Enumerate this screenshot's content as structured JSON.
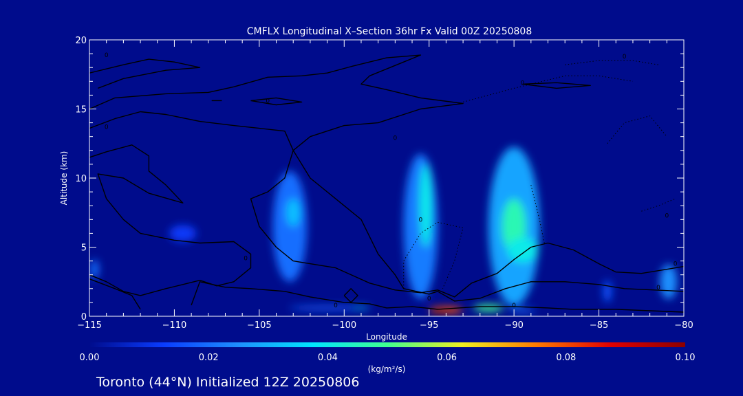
{
  "chart_data": {
    "type": "heatmap",
    "title": "CMFLX Longitudinal X–Section 36hr  Fx Valid 00Z 20250808",
    "subtitle": "Toronto (44°N) Initialized 12Z 20250806",
    "xlabel": "Longitude",
    "ylabel": "Altitude (km)",
    "xlim": [
      -115,
      -80
    ],
    "ylim": [
      0,
      20
    ],
    "x_ticks": [
      {
        "value": -115,
        "label": "−115"
      },
      {
        "value": -110,
        "label": "−110"
      },
      {
        "value": -105,
        "label": "−105"
      },
      {
        "value": -100,
        "label": "−100"
      },
      {
        "value": -95,
        "label": "−95"
      },
      {
        "value": -90,
        "label": "−90"
      },
      {
        "value": -85,
        "label": "−85"
      },
      {
        "value": -80,
        "label": "−80"
      }
    ],
    "y_ticks": [
      {
        "value": 0,
        "label": "0"
      },
      {
        "value": 5,
        "label": "5"
      },
      {
        "value": 10,
        "label": "10"
      },
      {
        "value": 15,
        "label": "15"
      },
      {
        "value": 20,
        "label": "20"
      }
    ],
    "colorbar": {
      "min": 0.0,
      "max": 0.1,
      "ticks": [
        {
          "value": 0.0,
          "label": "0.00"
        },
        {
          "value": 0.02,
          "label": "0.02"
        },
        {
          "value": 0.04,
          "label": "0.04"
        },
        {
          "value": 0.06,
          "label": "0.06"
        },
        {
          "value": 0.08,
          "label": "0.08"
        },
        {
          "value": 0.1,
          "label": "0.10"
        }
      ],
      "units": "(kg/m²/s)",
      "colors": [
        "#000c8c",
        "#0a3cff",
        "#1e90ff",
        "#00e5ff",
        "#40ff90",
        "#f0f020",
        "#ff7a00",
        "#e00000",
        "#8a0000"
      ]
    },
    "flux_cells": [
      {
        "lon": -114.7,
        "alt": 3.4,
        "dlon": 0.5,
        "dalt": 1.4,
        "value": 0.02
      },
      {
        "lon": -109.5,
        "alt": 6.0,
        "dlon": 1.6,
        "dalt": 1.2,
        "value": 0.012
      },
      {
        "lon": -103.2,
        "alt": 6.5,
        "dlon": 2.0,
        "dalt": 8.0,
        "value": 0.02
      },
      {
        "lon": -103.0,
        "alt": 7.5,
        "dlon": 0.8,
        "dalt": 2.0,
        "value": 0.032
      },
      {
        "lon": -95.5,
        "alt": 6.5,
        "dlon": 2.0,
        "dalt": 10.5,
        "value": 0.022
      },
      {
        "lon": -95.2,
        "alt": 8.0,
        "dlon": 0.7,
        "dalt": 6.0,
        "value": 0.04
      },
      {
        "lon": -90.0,
        "alt": 6.5,
        "dlon": 3.0,
        "dalt": 11.5,
        "value": 0.028
      },
      {
        "lon": -90.0,
        "alt": 6.5,
        "dlon": 1.4,
        "dalt": 4.0,
        "value": 0.046
      },
      {
        "lon": -89.5,
        "alt": 4.8,
        "dlon": 1.8,
        "dalt": 1.8,
        "value": 0.04
      },
      {
        "lon": -84.5,
        "alt": 1.8,
        "dlon": 0.5,
        "dalt": 1.6,
        "value": 0.016
      },
      {
        "lon": -80.9,
        "alt": 2.5,
        "dlon": 1.0,
        "dalt": 2.5,
        "value": 0.025
      },
      {
        "lon": -101.0,
        "alt": 0.6,
        "dlon": 4.5,
        "dalt": 0.3,
        "value": 0.018
      },
      {
        "lon": -99.0,
        "alt": 0.6,
        "dlon": 1.0,
        "dalt": 0.2,
        "value": 0.035
      },
      {
        "lon": -94.0,
        "alt": 0.45,
        "dlon": 2.0,
        "dalt": 0.5,
        "value": 0.08
      },
      {
        "lon": -94.4,
        "alt": 0.3,
        "dlon": 0.8,
        "dalt": 0.3,
        "value": 0.1
      },
      {
        "lon": -91.5,
        "alt": 0.6,
        "dlon": 1.8,
        "dalt": 0.5,
        "value": 0.05
      },
      {
        "lon": -89.5,
        "alt": 0.4,
        "dlon": 1.5,
        "dalt": 0.3,
        "value": 0.02
      }
    ],
    "contours": [
      {
        "style": "solid",
        "points": [
          [
            -115,
            17.6
          ],
          [
            -113,
            18.2
          ],
          [
            -111.5,
            18.6
          ],
          [
            -110,
            18.4
          ],
          [
            -108.5,
            18.0
          ],
          [
            -110.5,
            17.8
          ],
          [
            -113,
            17.2
          ],
          [
            -114.5,
            16.5
          ]
        ]
      },
      {
        "style": "solid",
        "points": [
          [
            -115,
            15.0
          ],
          [
            -113.5,
            15.8
          ],
          [
            -110.5,
            16.1
          ],
          [
            -108,
            16.2
          ],
          [
            -106.5,
            16.6
          ],
          [
            -104.5,
            17.3
          ],
          [
            -102.5,
            17.4
          ],
          [
            -101,
            17.6
          ],
          [
            -99.5,
            18.1
          ],
          [
            -97.5,
            18.7
          ],
          [
            -95.5,
            18.9
          ],
          [
            -96.5,
            18.4
          ],
          [
            -98.5,
            17.4
          ],
          [
            -99,
            16.8
          ],
          [
            -97.5,
            16.4
          ],
          [
            -95.5,
            15.8
          ],
          [
            -93,
            15.4
          ],
          [
            -95.5,
            15.0
          ],
          [
            -98,
            14.0
          ],
          [
            -100,
            13.8
          ],
          [
            -102,
            13.0
          ],
          [
            -103,
            12.0
          ],
          [
            -103.5,
            10.0
          ],
          [
            -104.5,
            9.0
          ],
          [
            -105.5,
            8.5
          ],
          [
            -105,
            6.5
          ],
          [
            -104,
            5.0
          ],
          [
            -103,
            4.0
          ],
          [
            -100.5,
            3.5
          ],
          [
            -98.5,
            2.4
          ],
          [
            -97,
            1.9
          ],
          [
            -95.5,
            1.7
          ],
          [
            -94.5,
            1.9
          ],
          [
            -93.5,
            1.4
          ],
          [
            -92.5,
            2.4
          ],
          [
            -91,
            3.1
          ],
          [
            -90,
            4.1
          ],
          [
            -89,
            5.0
          ],
          [
            -88,
            5.3
          ],
          [
            -86.5,
            4.8
          ],
          [
            -85,
            3.8
          ],
          [
            -84,
            3.2
          ],
          [
            -82.5,
            3.1
          ],
          [
            -81,
            3.4
          ],
          [
            -80,
            3.6
          ]
        ]
      },
      {
        "style": "solid",
        "points": [
          [
            -115,
            13.6
          ],
          [
            -113.5,
            14.3
          ],
          [
            -112,
            14.8
          ],
          [
            -110.5,
            14.6
          ],
          [
            -108.5,
            14.1
          ],
          [
            -106.5,
            13.8
          ],
          [
            -105,
            13.6
          ],
          [
            -103.5,
            13.4
          ],
          [
            -103,
            12.0
          ],
          [
            -102,
            10.0
          ],
          [
            -100,
            8.0
          ],
          [
            -99,
            7.0
          ],
          [
            -98,
            4.5
          ],
          [
            -97,
            3.0
          ],
          [
            -96.5,
            2.0
          ],
          [
            -95,
            1.6
          ],
          [
            -94.5,
            1.8
          ],
          [
            -93.5,
            1.1
          ],
          [
            -92,
            1.3
          ],
          [
            -90.5,
            2.0
          ],
          [
            -89,
            2.5
          ],
          [
            -87,
            2.5
          ],
          [
            -85,
            2.3
          ],
          [
            -83.5,
            2.0
          ],
          [
            -80,
            1.8
          ]
        ]
      },
      {
        "style": "solid",
        "points": [
          [
            -115,
            11.5
          ],
          [
            -114,
            11.9
          ],
          [
            -112.5,
            12.4
          ],
          [
            -111.5,
            11.6
          ],
          [
            -111.5,
            10.5
          ],
          [
            -110.5,
            9.5
          ],
          [
            -109.5,
            8.2
          ],
          [
            -111.5,
            8.9
          ],
          [
            -113,
            10.0
          ],
          [
            -114.5,
            10.3
          ],
          [
            -114,
            8.5
          ],
          [
            -113,
            7.0
          ],
          [
            -112,
            6.0
          ],
          [
            -110,
            5.5
          ],
          [
            -108.5,
            5.3
          ],
          [
            -106.5,
            5.4
          ],
          [
            -105.5,
            4.5
          ],
          [
            -105.5,
            3.5
          ],
          [
            -106.5,
            2.5
          ],
          [
            -107.5,
            2.2
          ],
          [
            -108.5,
            2.6
          ],
          [
            -109.5,
            2.3
          ],
          [
            -110.5,
            2.0
          ],
          [
            -112,
            1.5
          ],
          [
            -113,
            1.8
          ],
          [
            -114,
            2.5
          ],
          [
            -115,
            3.0
          ]
        ]
      },
      {
        "style": "solid",
        "points": [
          [
            -115,
            2.7
          ],
          [
            -113.5,
            2.0
          ],
          [
            -112.5,
            1.5
          ],
          [
            -112,
            0.5
          ]
        ]
      },
      {
        "style": "solid",
        "points": [
          [
            -109,
            0.8
          ],
          [
            -108.5,
            2.5
          ],
          [
            -107,
            2.1
          ],
          [
            -105.5,
            2.0
          ],
          [
            -103.5,
            1.8
          ],
          [
            -102,
            1.4
          ],
          [
            -101,
            1.2
          ],
          [
            -100,
            1.0
          ],
          [
            -98.5,
            0.9
          ],
          [
            -97.5,
            0.6
          ],
          [
            -96,
            0.7
          ],
          [
            -94.5,
            0.5
          ],
          [
            -92,
            0.7
          ],
          [
            -90,
            0.7
          ],
          [
            -88,
            0.6
          ],
          [
            -86.5,
            0.5
          ],
          [
            -84,
            0.5
          ],
          [
            -82,
            0.4
          ],
          [
            -80,
            0.3
          ]
        ]
      },
      {
        "style": "solid",
        "points": [
          [
            -100,
            1.5
          ],
          [
            -99.6,
            2.0
          ],
          [
            -99.2,
            1.5
          ],
          [
            -99.6,
            1.0
          ],
          [
            -100,
            1.5
          ]
        ]
      },
      {
        "style": "solid",
        "points": [
          [
            -89.5,
            16.8
          ],
          [
            -87.5,
            16.9
          ],
          [
            -85.5,
            16.7
          ],
          [
            -87.5,
            16.5
          ],
          [
            -89.5,
            16.8
          ]
        ]
      },
      {
        "style": "solid",
        "points": [
          [
            -105.5,
            15.6
          ],
          [
            -104,
            15.8
          ],
          [
            -102.5,
            15.5
          ],
          [
            -104,
            15.3
          ],
          [
            -105.5,
            15.6
          ]
        ]
      },
      {
        "style": "solid",
        "points": [
          [
            -107.8,
            15.6
          ],
          [
            -107.2,
            15.6
          ]
        ]
      },
      {
        "style": "dotted",
        "points": [
          [
            -96.5,
            2.0
          ],
          [
            -96.5,
            4.0
          ],
          [
            -95.5,
            6.0
          ],
          [
            -94.5,
            6.8
          ],
          [
            -93.0,
            6.4
          ],
          [
            -93.5,
            4.0
          ],
          [
            -94.2,
            2.0
          ]
        ]
      },
      {
        "style": "dotted",
        "points": [
          [
            -93,
            15.5
          ],
          [
            -90,
            16.5
          ],
          [
            -87,
            17.4
          ],
          [
            -85,
            17.4
          ],
          [
            -83,
            17.0
          ]
        ]
      },
      {
        "style": "dotted",
        "points": [
          [
            -87,
            18.2
          ],
          [
            -85,
            18.5
          ],
          [
            -83,
            18.5
          ],
          [
            -81.5,
            18.2
          ]
        ]
      },
      {
        "style": "dotted",
        "points": [
          [
            -89,
            9.5
          ],
          [
            -88.5,
            7.0
          ],
          [
            -88.2,
            5.2
          ]
        ]
      },
      {
        "style": "dotted",
        "points": [
          [
            -84.5,
            12.5
          ],
          [
            -83.5,
            14.0
          ],
          [
            -82,
            14.5
          ],
          [
            -81,
            13.0
          ]
        ]
      },
      {
        "style": "dotted",
        "points": [
          [
            -82.5,
            7.6
          ],
          [
            -81.5,
            8.0
          ],
          [
            -80.5,
            8.5
          ]
        ]
      }
    ],
    "contour_labels": [
      {
        "lon": -114.0,
        "alt": 18.9,
        "text": "0"
      },
      {
        "lon": -114.0,
        "alt": 13.7,
        "text": "0"
      },
      {
        "lon": -104.5,
        "alt": 15.6,
        "text": "0"
      },
      {
        "lon": -97.0,
        "alt": 12.9,
        "text": "0"
      },
      {
        "lon": -95.0,
        "alt": 1.3,
        "text": "0"
      },
      {
        "lon": -89.5,
        "alt": 16.9,
        "text": "0"
      },
      {
        "lon": -90.0,
        "alt": 0.8,
        "text": "0"
      },
      {
        "lon": -100.5,
        "alt": 0.8,
        "text": "0"
      },
      {
        "lon": -95.5,
        "alt": 7.0,
        "text": "0"
      },
      {
        "lon": -83.5,
        "alt": 18.8,
        "text": "0"
      },
      {
        "lon": -81.0,
        "alt": 7.3,
        "text": "0"
      },
      {
        "lon": -80.5,
        "alt": 3.8,
        "text": "0"
      },
      {
        "lon": -105.8,
        "alt": 4.2,
        "text": "0"
      },
      {
        "lon": -81.5,
        "alt": 2.1,
        "text": "0"
      }
    ]
  }
}
